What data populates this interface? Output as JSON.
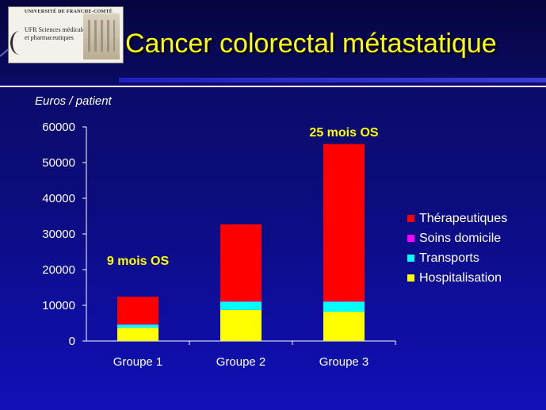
{
  "slide": {
    "title": "Cancer colorectal métastatique",
    "logo": {
      "top_text": "UNIVERSITÉ DE FRANCHE-COMTÉ",
      "line1": "UFR Sciences médicales",
      "line2": "et pharmaceutiques"
    }
  },
  "colors": {
    "Therapeutiques": "#ff0000",
    "Soins domicile": "#ff00ff",
    "Transports": "#00ffff",
    "Hospitalisation": "#ffff00",
    "axis": "#ffffff",
    "annotation": "#ffff00",
    "title": "#ffff00"
  },
  "chart_data": {
    "type": "bar",
    "stacked": true,
    "ylabel": "Euros / patient",
    "ylim": [
      0,
      60000
    ],
    "yticks": [
      0,
      10000,
      20000,
      30000,
      40000,
      50000,
      60000
    ],
    "categories": [
      "Groupe 1",
      "Groupe 2",
      "Groupe 3"
    ],
    "series": [
      {
        "name": "Hospitalisation",
        "values": [
          3700,
          8700,
          8200
        ]
      },
      {
        "name": "Transports",
        "values": [
          900,
          2300,
          2800
        ]
      },
      {
        "name": "Soins domicile",
        "values": [
          100,
          100,
          100
        ]
      },
      {
        "name": "Thérapeutiques",
        "values": [
          7700,
          21600,
          44100
        ]
      }
    ],
    "legend_order": [
      "Thérapeutiques",
      "Soins domicile",
      "Transports",
      "Hospitalisation"
    ],
    "legend_position": "right",
    "annotations": [
      {
        "text": "9 mois OS",
        "category": "Groupe 1",
        "y": 22500
      },
      {
        "text": "25 mois OS",
        "category": "Groupe 3",
        "y": 58500
      }
    ],
    "grid": false
  }
}
